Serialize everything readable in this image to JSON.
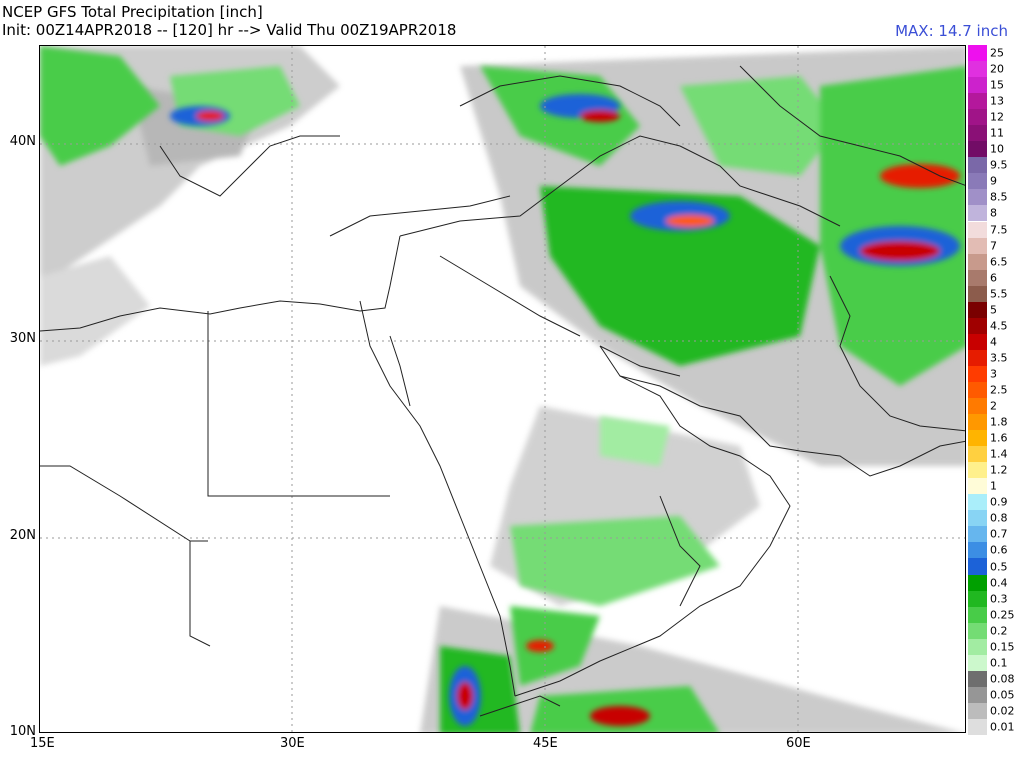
{
  "header": {
    "title": "NCEP GFS Total Precipitation [inch]",
    "init_line": "Init: 00Z14APR2018 -- [120] hr --> Valid Thu 00Z19APR2018",
    "max_label": "MAX: 14.7 inch"
  },
  "axes": {
    "lat_labels": [
      "40N",
      "30N",
      "20N",
      "10N"
    ],
    "lon_labels": [
      "15E",
      "30E",
      "45E",
      "60E"
    ]
  },
  "legend": {
    "levels": [
      {
        "label": "25",
        "color": "#ee10ee"
      },
      {
        "label": "20",
        "color": "#e030e0"
      },
      {
        "label": "15",
        "color": "#cc22cc"
      },
      {
        "label": "13",
        "color": "#b4189c"
      },
      {
        "label": "12",
        "color": "#a01488"
      },
      {
        "label": "11",
        "color": "#8a1076"
      },
      {
        "label": "10",
        "color": "#720c66"
      },
      {
        "label": "9.5",
        "color": "#7a68a8"
      },
      {
        "label": "9",
        "color": "#8a7ab8"
      },
      {
        "label": "8.5",
        "color": "#a090c8"
      },
      {
        "label": "8",
        "color": "#c0b4dc"
      },
      {
        "label": "7.5",
        "color": "#f2dcdc"
      },
      {
        "label": "7",
        "color": "#e2bcb4"
      },
      {
        "label": "6.5",
        "color": "#c89a8c"
      },
      {
        "label": "6",
        "color": "#a87a6c"
      },
      {
        "label": "5.5",
        "color": "#8c5c4c"
      },
      {
        "label": "5",
        "color": "#7a0000"
      },
      {
        "label": "4.5",
        "color": "#a00000"
      },
      {
        "label": "4",
        "color": "#c80000"
      },
      {
        "label": "3.5",
        "color": "#e61c00"
      },
      {
        "label": "3",
        "color": "#ff3c00"
      },
      {
        "label": "2.5",
        "color": "#ff5a00"
      },
      {
        "label": "2",
        "color": "#ff7a00"
      },
      {
        "label": "1.8",
        "color": "#ff9800"
      },
      {
        "label": "1.6",
        "color": "#ffb400"
      },
      {
        "label": "1.4",
        "color": "#ffd040"
      },
      {
        "label": "1.2",
        "color": "#fff08c"
      },
      {
        "label": "1",
        "color": "#fffcd8"
      },
      {
        "label": "0.9",
        "color": "#aaeefa"
      },
      {
        "label": "0.8",
        "color": "#88d4f4"
      },
      {
        "label": "0.7",
        "color": "#66b6ee"
      },
      {
        "label": "0.6",
        "color": "#3c8ee4"
      },
      {
        "label": "0.5",
        "color": "#1c62d8"
      },
      {
        "label": "0.4",
        "color": "#00a000"
      },
      {
        "label": "0.3",
        "color": "#20b820"
      },
      {
        "label": "0.25",
        "color": "#48cc48"
      },
      {
        "label": "0.2",
        "color": "#74dc74"
      },
      {
        "label": "0.15",
        "color": "#a2eca2"
      },
      {
        "label": "0.1",
        "color": "#ccf8cc"
      },
      {
        "label": "0.08",
        "color": "#6e6e6e"
      },
      {
        "label": "0.05",
        "color": "#969696"
      },
      {
        "label": "0.02",
        "color": "#bcbcbc"
      },
      {
        "label": "0.01",
        "color": "#dedede"
      }
    ]
  }
}
